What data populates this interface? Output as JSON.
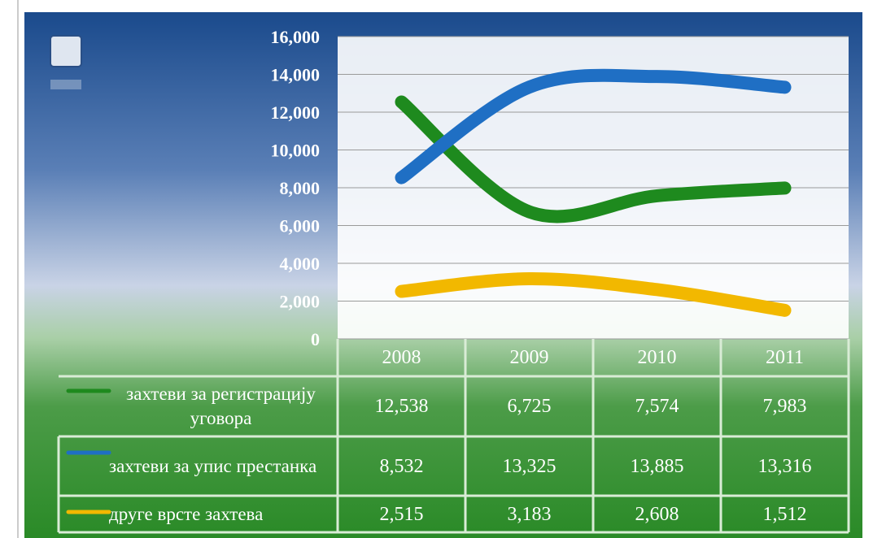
{
  "chart_data": {
    "type": "line",
    "categories": [
      "2008",
      "2009",
      "2010",
      "2011"
    ],
    "series": [
      {
        "name": "захтеви за регистрацију уговора",
        "color": "#1e8a1e",
        "values": [
          12538,
          6725,
          7574,
          7983
        ],
        "value_labels": [
          "12,538",
          "6,725",
          "7,574",
          "7,983"
        ]
      },
      {
        "name": "захтеви за упис престанка",
        "color": "#1f6fc4",
        "values": [
          8532,
          13325,
          13885,
          13316
        ],
        "value_labels": [
          "8,532",
          "13,325",
          "13,885",
          "13,316"
        ]
      },
      {
        "name": "друге врсте захтева",
        "color": "#f2b800",
        "values": [
          2515,
          3183,
          2608,
          1512
        ],
        "value_labels": [
          "2,515",
          "3,183",
          "2,608",
          "1,512"
        ]
      }
    ],
    "ylim": [
      0,
      16000
    ],
    "yticks": [
      0,
      {
        "value": 2000,
        "label": "2,000"
      },
      {
        "value": 4000,
        "label": "4,000"
      },
      {
        "value": 6000,
        "label": "6,000"
      },
      {
        "value": 8000,
        "label": "8,000"
      },
      {
        "value": 10000,
        "label": "10,000"
      },
      {
        "value": 12000,
        "label": "12,000"
      },
      {
        "value": 14000,
        "label": "14,000"
      },
      {
        "value": 16000,
        "label": "16,000"
      }
    ],
    "grid": true
  }
}
